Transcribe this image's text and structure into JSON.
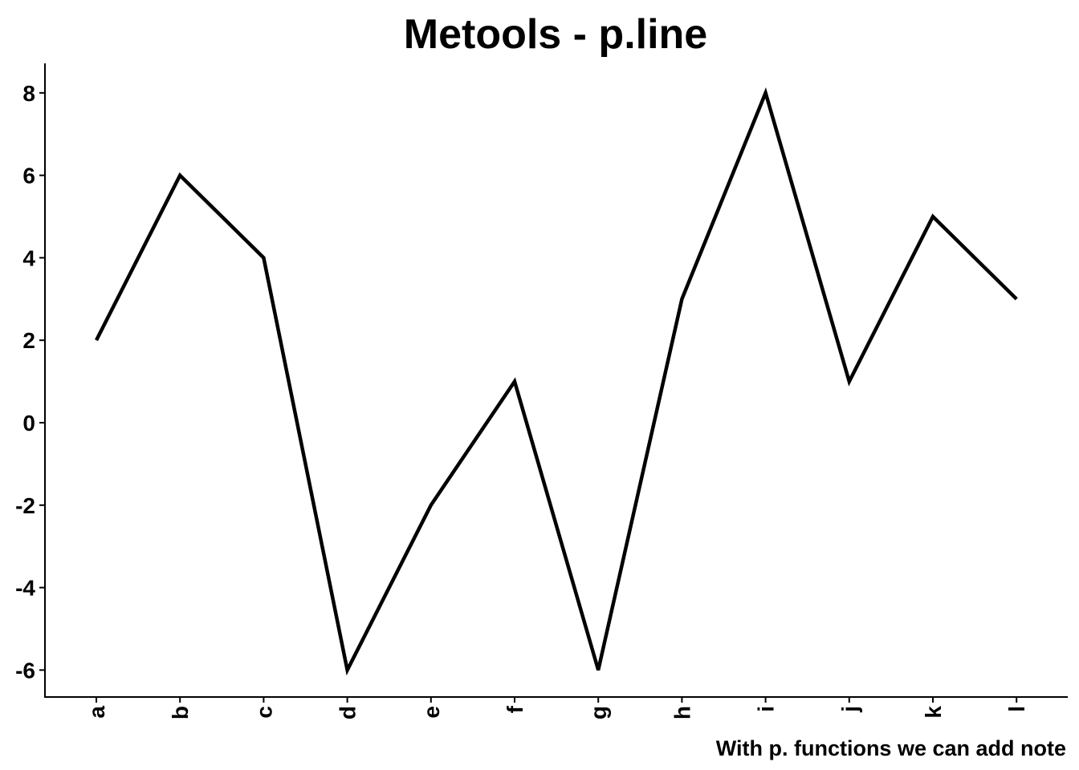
{
  "chart_data": {
    "type": "line",
    "title": "Metools - p.line",
    "caption": "With p. functions we can add note",
    "xlabel": "",
    "ylabel": "",
    "categories": [
      "a",
      "b",
      "c",
      "d",
      "e",
      "f",
      "g",
      "h",
      "i",
      "j",
      "k",
      "l"
    ],
    "series": [
      {
        "values": [
          2,
          6,
          4,
          -6,
          -2,
          1,
          -6,
          3,
          8,
          1,
          5,
          3
        ]
      }
    ],
    "yticks": [
      -6,
      -4,
      -2,
      0,
      2,
      4,
      6,
      8
    ],
    "ytick_labels": [
      "-6",
      "-4",
      "-2",
      "0",
      "2",
      "4",
      "6",
      "8"
    ],
    "ylim": [
      -6.7,
      8.7
    ],
    "grid": false,
    "legend": "none",
    "line_color": "#000000"
  }
}
